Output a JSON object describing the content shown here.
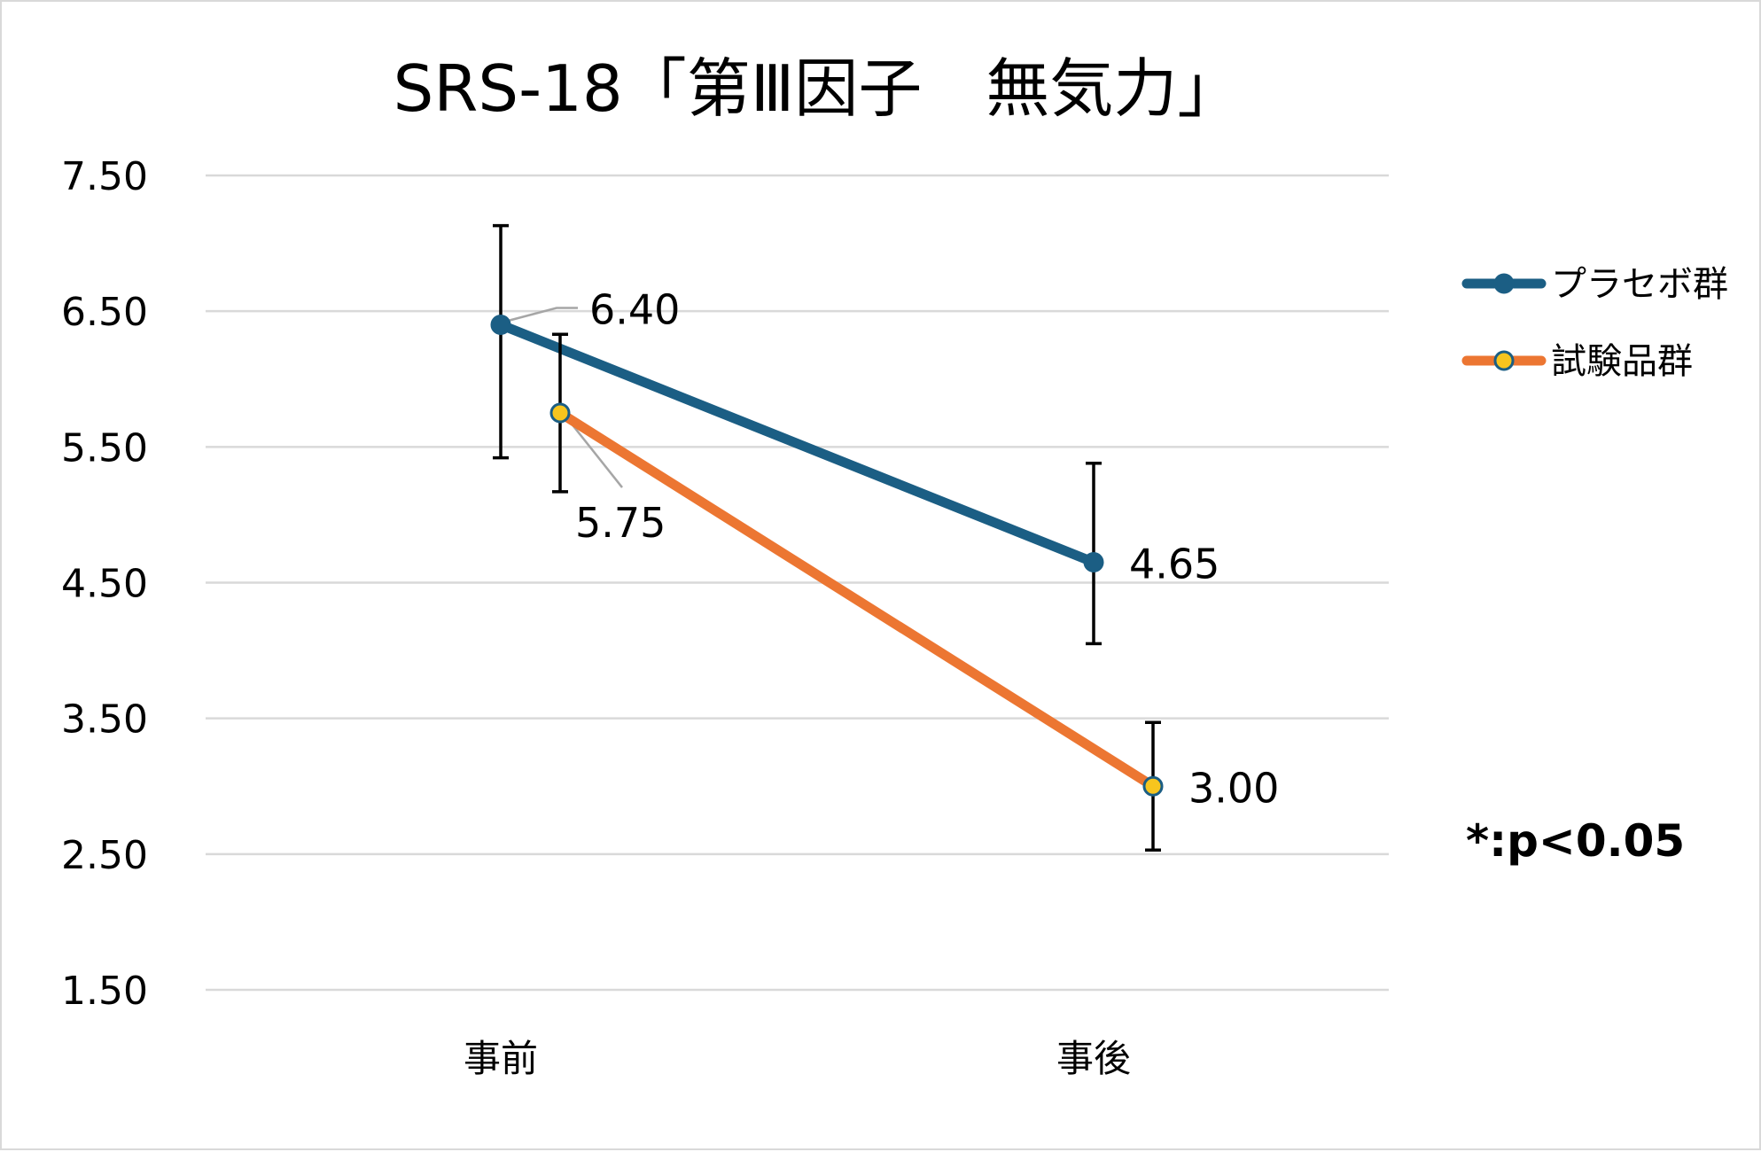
{
  "chart_data": {
    "type": "line",
    "title": "SRS-18「第Ⅲ因子　無気力」",
    "categories": [
      "事前",
      "事後"
    ],
    "ylim": [
      1.5,
      7.5
    ],
    "y_ticks": [
      "7.50",
      "6.50",
      "5.50",
      "4.50",
      "3.50",
      "2.50",
      "1.50"
    ],
    "y_tick_values": [
      7.5,
      6.5,
      5.5,
      4.5,
      3.5,
      2.5,
      1.5
    ],
    "grid": true,
    "legend_position": "right",
    "series": [
      {
        "name": "プラセボ群",
        "values": [
          6.4,
          4.65
        ],
        "labels": [
          "6.40",
          "4.65"
        ],
        "error_upper": [
          7.13,
          5.38
        ],
        "error_lower": [
          5.42,
          4.05
        ],
        "line_color": "#1b5e84",
        "marker_color": "#1b5e84"
      },
      {
        "name": "試験品群",
        "values": [
          5.75,
          3.0
        ],
        "labels": [
          "5.75",
          "3.00"
        ],
        "error_upper": [
          6.33,
          3.47
        ],
        "error_lower": [
          5.17,
          2.53
        ],
        "line_color": "#ec7632",
        "marker_color": "#f7c51e"
      }
    ],
    "annotation": "*:p<0.05"
  }
}
